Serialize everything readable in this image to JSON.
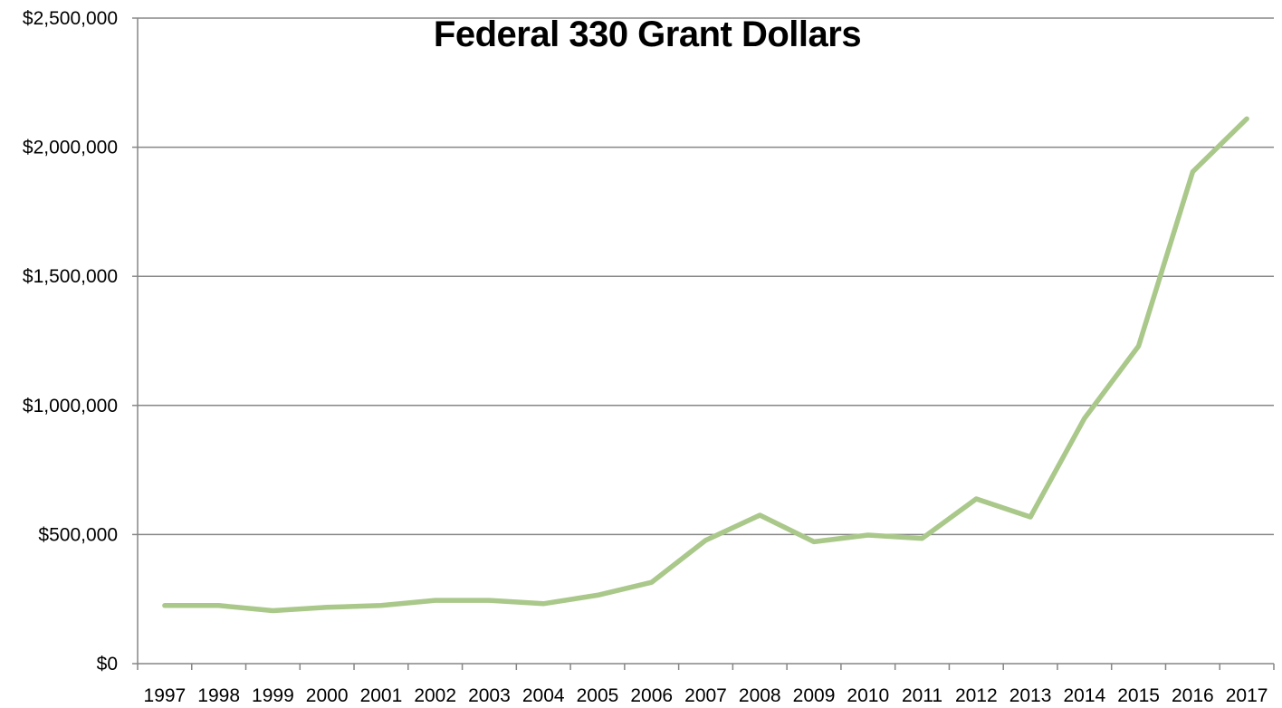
{
  "chart_data": {
    "type": "line",
    "title": "Federal 330 Grant Dollars",
    "xlabel": "",
    "ylabel": "",
    "categories": [
      "1997",
      "1998",
      "1999",
      "2000",
      "2001",
      "2002",
      "2003",
      "2004",
      "2005",
      "2006",
      "2007",
      "2008",
      "2009",
      "2010",
      "2011",
      "2012",
      "2013",
      "2014",
      "2015",
      "2016",
      "2017"
    ],
    "series": [
      {
        "values": [
          225000,
          225000,
          205000,
          218000,
          225000,
          245000,
          245000,
          232000,
          265000,
          315000,
          478000,
          575000,
          472000,
          498000,
          485000,
          638000,
          568000,
          950000,
          1230000,
          1905000,
          2110000
        ],
        "color": "#a9c88a"
      }
    ],
    "ylim": [
      0,
      2500000
    ],
    "yticks": [
      0,
      500000,
      1000000,
      1500000,
      2000000,
      2500000
    ],
    "ytick_labels": [
      "$0",
      "$500,000",
      "$1,000,000",
      "$1,500,000",
      "$2,000,000",
      "$2,500,000"
    ],
    "grid": true,
    "legend": "none",
    "gridline_color": "#868686",
    "axis_color": "#868686"
  }
}
